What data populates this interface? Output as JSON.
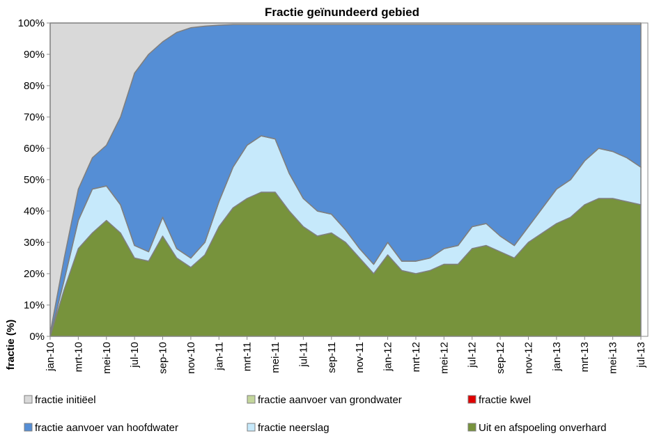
{
  "chart_data": {
    "type": "stacked-area",
    "title": "Fractie geïnundeerd gebied",
    "y_label": "fractie (%)",
    "categories": [
      "jan-10",
      null,
      "mrt-10",
      null,
      "mei-10",
      null,
      "jul-10",
      null,
      "sep-10",
      null,
      "nov-10",
      null,
      "jan-11",
      null,
      "mrt-11",
      null,
      "mei-11",
      null,
      "jul-11",
      null,
      "sep-11",
      null,
      "nov-11",
      null,
      "jan-12",
      null,
      "mrt-12",
      null,
      "mei-12",
      null,
      "jul-12",
      null,
      "sep-12",
      null,
      "nov-12",
      null,
      "jan-13",
      null,
      "mrt-13",
      null,
      "mei-13",
      null,
      "jul-13"
    ],
    "ylim": [
      0,
      100
    ],
    "yticks": [
      {
        "value": 0,
        "label": "0%"
      },
      {
        "value": 10,
        "label": "10%"
      },
      {
        "value": 20,
        "label": "20%"
      },
      {
        "value": 30,
        "label": "30%"
      },
      {
        "value": 40,
        "label": "40%"
      },
      {
        "value": 50,
        "label": "50%"
      },
      {
        "value": 60,
        "label": "60%"
      },
      {
        "value": 70,
        "label": "70%"
      },
      {
        "value": 80,
        "label": "80%"
      },
      {
        "value": 90,
        "label": "90%"
      },
      {
        "value": 100,
        "label": "100%"
      }
    ],
    "series": [
      {
        "name": "fractie initiëel",
        "color": "#d9d9d9",
        "values": [
          99,
          75,
          53,
          43,
          39,
          30,
          16,
          10,
          6,
          3,
          1.5,
          1,
          0.7,
          0.5,
          0.5,
          0.5,
          0.5,
          0.5,
          0.5,
          0.5,
          0.5,
          0.5,
          0.5,
          0.5,
          0.5,
          0.5,
          0.5,
          0.5,
          0.5,
          0.5,
          0.5,
          0.5,
          0.5,
          0.5,
          0.5,
          0.5,
          0.5,
          0.5,
          0.5,
          0.5,
          0.5,
          0.5,
          0.5
        ]
      },
      {
        "name": "fractie aanvoer van grondwater",
        "color": "#c3d69b",
        "values": [
          0,
          0,
          0,
          0,
          0,
          0,
          0,
          0,
          0,
          0,
          0,
          0,
          0,
          0,
          0,
          0,
          0,
          0,
          0,
          0,
          0,
          0,
          0,
          0,
          0,
          0,
          0,
          0,
          0,
          0,
          0,
          0,
          0,
          0,
          0,
          0,
          0,
          0,
          0,
          0,
          0,
          0,
          0
        ]
      },
      {
        "name": "fractie kwel",
        "color": "#e00000",
        "values": [
          0,
          0,
          0,
          0,
          0,
          0,
          0,
          0,
          0,
          0,
          0,
          0,
          0,
          0,
          0,
          0,
          0,
          0,
          0,
          0,
          0,
          0,
          0,
          0,
          0,
          0,
          0,
          0,
          0,
          0,
          0,
          0,
          0,
          0,
          0,
          0,
          0,
          0,
          0,
          0,
          0,
          0,
          0
        ]
      },
      {
        "name": "fractie aanvoer van hoofdwater",
        "color": "#558ed5",
        "values": [
          1,
          7,
          10,
          10,
          13,
          28,
          55,
          63,
          56,
          69,
          73.5,
          69,
          56.3,
          45.5,
          38.5,
          35.5,
          36.5,
          47.5,
          55.5,
          59.5,
          60.5,
          65.5,
          71.5,
          76.5,
          69.5,
          75.5,
          75.5,
          74.5,
          71.5,
          70.5,
          64.5,
          63.5,
          67.5,
          70.5,
          64.5,
          58.5,
          52.5,
          49.5,
          43.5,
          39.5,
          40.5,
          42.5,
          45.5
        ]
      },
      {
        "name": "fractie neerslag",
        "color": "#c6e9fb",
        "values": [
          0,
          3,
          9,
          14,
          11,
          9,
          4,
          3,
          6,
          3,
          3,
          4,
          8,
          13,
          17,
          18,
          17,
          12,
          9,
          8,
          6,
          4,
          3,
          3,
          4,
          3,
          4,
          4,
          5,
          6,
          7,
          7,
          5,
          4,
          5,
          8,
          11,
          12,
          14,
          16,
          15,
          14,
          12
        ]
      },
      {
        "name": "Uit en afspoeling onverhard",
        "color": "#77933c",
        "values": [
          0,
          15,
          28,
          33,
          37,
          33,
          25,
          24,
          32,
          25,
          22,
          26,
          35,
          41,
          44,
          46,
          46,
          40,
          35,
          32,
          33,
          30,
          25,
          20,
          26,
          21,
          20,
          21,
          23,
          23,
          28,
          29,
          27,
          25,
          30,
          33,
          36,
          38,
          42,
          44,
          44,
          43,
          42
        ]
      }
    ]
  }
}
